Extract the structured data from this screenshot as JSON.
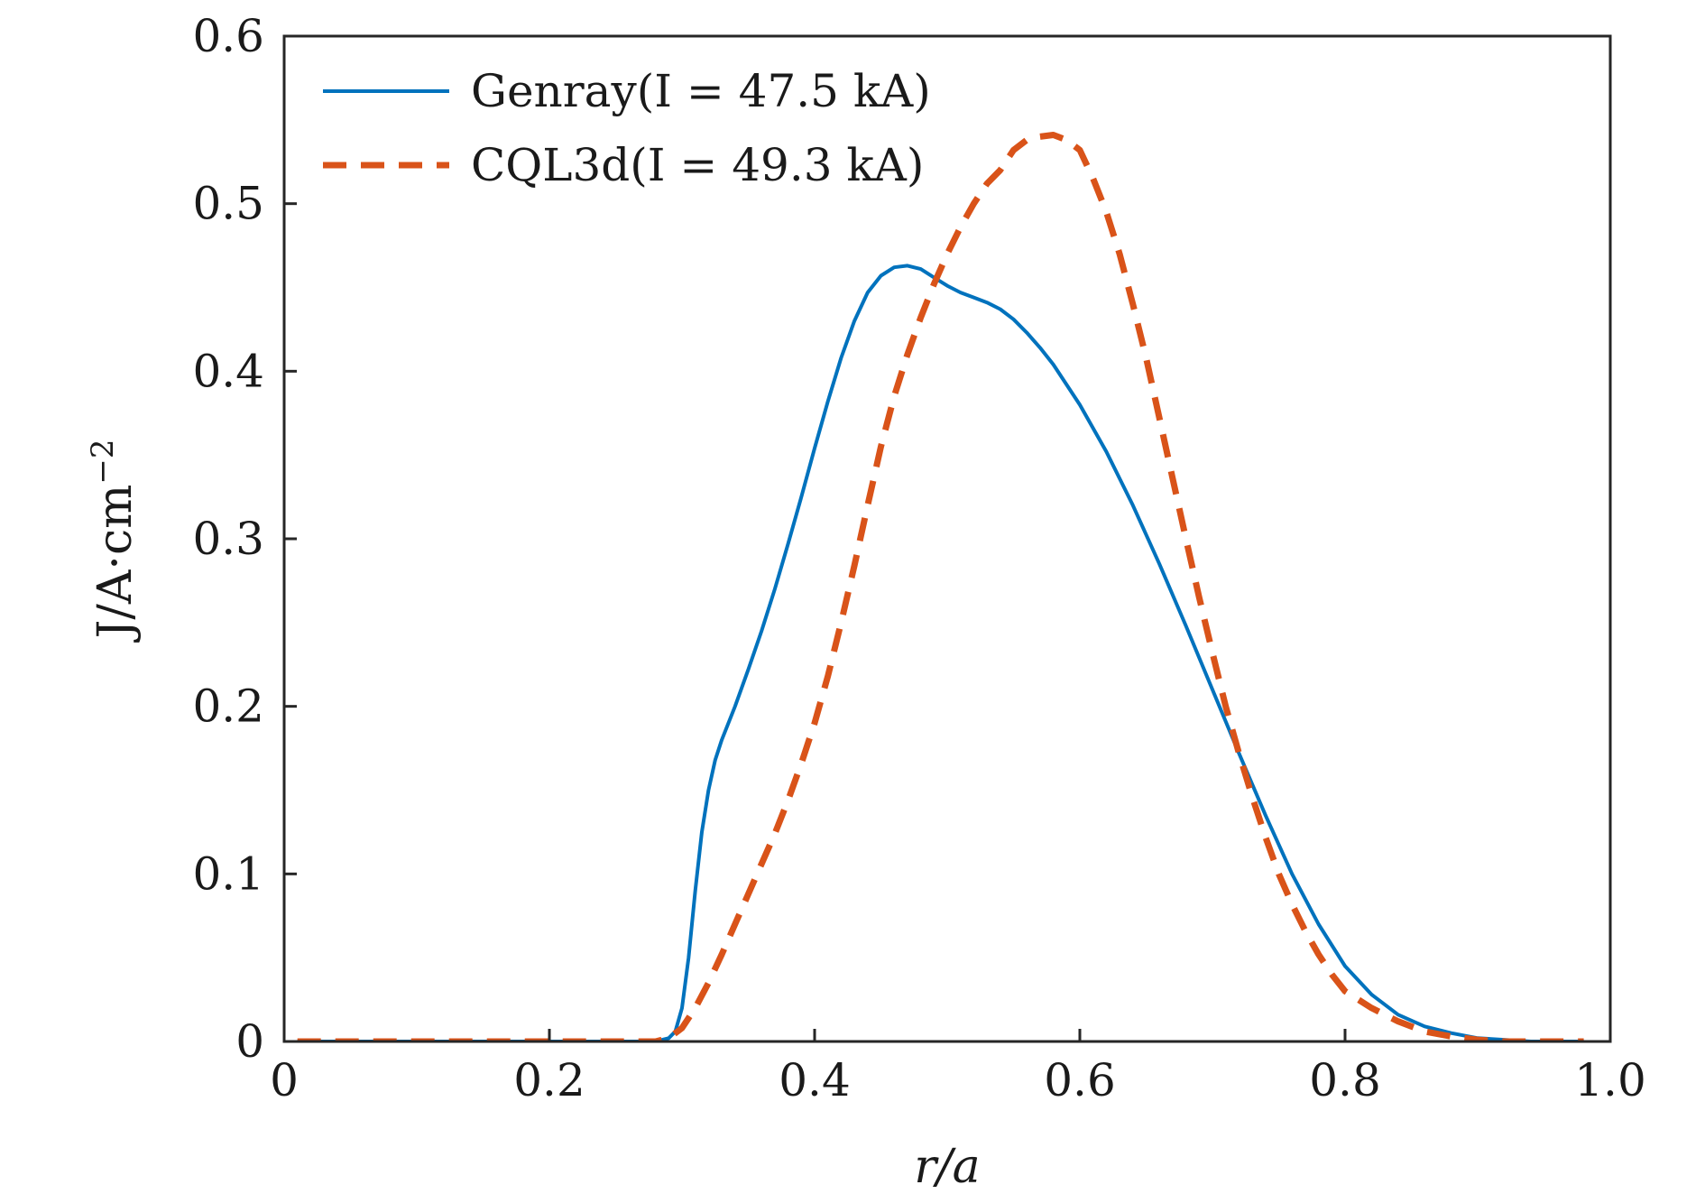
{
  "chart_data": {
    "type": "line",
    "title": "",
    "xlabel": "r/a",
    "ylabel": "J/A·cm",
    "ylabel_exponent": "−2",
    "xlim": [
      0,
      1.0
    ],
    "ylim": [
      0,
      0.6
    ],
    "x_ticks": [
      0,
      0.2,
      0.4,
      0.6,
      0.8,
      1.0
    ],
    "x_tick_labels": [
      "0",
      "0.2",
      "0.4",
      "0.6",
      "0.8",
      "1.0"
    ],
    "y_ticks": [
      0,
      0.1,
      0.2,
      0.3,
      0.4,
      0.5,
      0.6
    ],
    "y_tick_labels": [
      "0",
      "0.1",
      "0.2",
      "0.3",
      "0.4",
      "0.5",
      "0.6"
    ],
    "grid": false,
    "legend_position": "top-left",
    "series": [
      {
        "name": "Genray(I = 47.5 kA)",
        "color": "#0072BD",
        "style": "solid",
        "x": [
          0.01,
          0.05,
          0.1,
          0.15,
          0.2,
          0.25,
          0.28,
          0.29,
          0.295,
          0.3,
          0.305,
          0.31,
          0.315,
          0.32,
          0.325,
          0.33,
          0.34,
          0.35,
          0.36,
          0.37,
          0.38,
          0.39,
          0.4,
          0.41,
          0.42,
          0.43,
          0.44,
          0.45,
          0.46,
          0.47,
          0.48,
          0.49,
          0.5,
          0.51,
          0.52,
          0.53,
          0.54,
          0.55,
          0.56,
          0.57,
          0.58,
          0.6,
          0.62,
          0.64,
          0.66,
          0.68,
          0.7,
          0.72,
          0.74,
          0.76,
          0.78,
          0.8,
          0.82,
          0.84,
          0.86,
          0.88,
          0.9,
          0.92,
          0.94,
          0.96,
          0.98
        ],
        "y": [
          0,
          0,
          0,
          0,
          0,
          0,
          0,
          0.002,
          0.006,
          0.02,
          0.05,
          0.09,
          0.125,
          0.15,
          0.168,
          0.18,
          0.2,
          0.222,
          0.245,
          0.27,
          0.297,
          0.325,
          0.354,
          0.382,
          0.408,
          0.43,
          0.447,
          0.457,
          0.462,
          0.463,
          0.461,
          0.456,
          0.451,
          0.447,
          0.444,
          0.441,
          0.437,
          0.431,
          0.423,
          0.414,
          0.404,
          0.38,
          0.352,
          0.32,
          0.285,
          0.248,
          0.21,
          0.172,
          0.135,
          0.1,
          0.07,
          0.045,
          0.028,
          0.016,
          0.009,
          0.005,
          0.002,
          0.001,
          0,
          0,
          0
        ]
      },
      {
        "name": "CQL3d(I = 49.3 kA)",
        "color": "#D95319",
        "style": "dashed",
        "x": [
          0.01,
          0.05,
          0.1,
          0.15,
          0.2,
          0.25,
          0.28,
          0.29,
          0.3,
          0.31,
          0.32,
          0.33,
          0.34,
          0.35,
          0.36,
          0.37,
          0.38,
          0.39,
          0.4,
          0.41,
          0.42,
          0.43,
          0.44,
          0.45,
          0.46,
          0.47,
          0.48,
          0.49,
          0.5,
          0.51,
          0.52,
          0.53,
          0.54,
          0.55,
          0.56,
          0.57,
          0.58,
          0.59,
          0.6,
          0.61,
          0.62,
          0.63,
          0.64,
          0.65,
          0.66,
          0.67,
          0.68,
          0.69,
          0.7,
          0.71,
          0.72,
          0.73,
          0.74,
          0.75,
          0.76,
          0.77,
          0.78,
          0.79,
          0.8,
          0.82,
          0.84,
          0.86,
          0.88,
          0.9,
          0.92,
          0.94,
          0.96,
          0.98
        ],
        "y": [
          0,
          0,
          0,
          0,
          0,
          0,
          0,
          0.002,
          0.008,
          0.02,
          0.035,
          0.052,
          0.07,
          0.088,
          0.106,
          0.124,
          0.144,
          0.166,
          0.19,
          0.218,
          0.25,
          0.284,
          0.32,
          0.355,
          0.385,
          0.41,
          0.432,
          0.452,
          0.47,
          0.486,
          0.5,
          0.512,
          0.52,
          0.532,
          0.538,
          0.54,
          0.541,
          0.538,
          0.532,
          0.515,
          0.495,
          0.47,
          0.44,
          0.408,
          0.372,
          0.336,
          0.3,
          0.265,
          0.232,
          0.2,
          0.172,
          0.146,
          0.122,
          0.1,
          0.082,
          0.066,
          0.052,
          0.04,
          0.03,
          0.02,
          0.012,
          0.006,
          0.003,
          0.001,
          0,
          0,
          0,
          0
        ]
      }
    ]
  }
}
